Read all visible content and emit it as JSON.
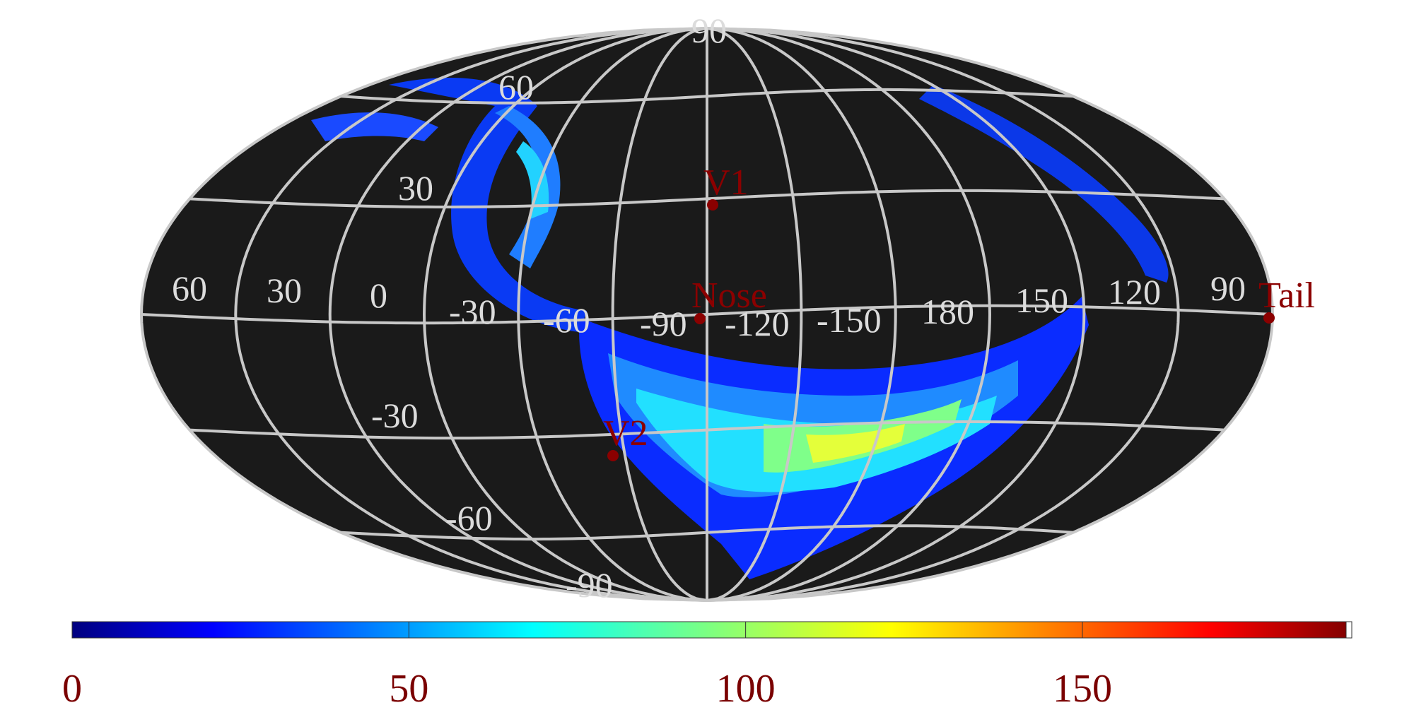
{
  "map": {
    "projection": "mollweide",
    "background_color": "#1a1a1a",
    "grid_color": "#c8c8c8",
    "latitude_labels": [
      "90",
      "60",
      "30",
      "-30",
      "-60",
      "-90"
    ],
    "longitude_labels": [
      "60",
      "30",
      "0",
      "-30",
      "-60",
      "-90",
      "-120",
      "-150",
      "180",
      "150",
      "120",
      "90"
    ],
    "markers": [
      {
        "label": "V1",
        "color": "#8b0000"
      },
      {
        "label": "Nose",
        "color": "#8b0000"
      },
      {
        "label": "V2",
        "color": "#8b0000"
      },
      {
        "label": "Tail",
        "color": "#8b0000"
      }
    ]
  },
  "colorbar": {
    "colormap": "jet",
    "min": 0,
    "max": 190,
    "tick_values": [
      0,
      50,
      100,
      150
    ],
    "tick_labels": [
      "0",
      "50",
      "100",
      "150"
    ],
    "tick_color": "#7a0000"
  }
}
